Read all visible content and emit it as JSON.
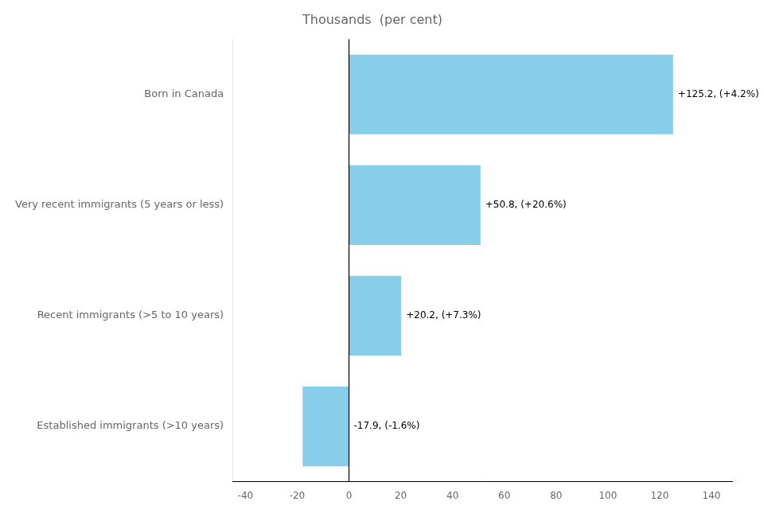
{
  "chart_data": {
    "type": "bar",
    "orientation": "horizontal",
    "title": "Thousands  (per cent)",
    "categories": [
      "Born in Canada",
      "Very recent immigrants (5 years or less)",
      "Recent immigrants (>5 to 10 years)",
      "Established immigrants (>10 years)"
    ],
    "values": [
      125.2,
      50.8,
      20.2,
      -17.9
    ],
    "value_labels": [
      "+125.2, (+4.2%)",
      "+50.8, (+20.6%)",
      "+20.2, (+7.3%)",
      "-17.9, (-1.6%)"
    ],
    "color": "#87CEEB",
    "xlim": [
      -45,
      148
    ],
    "xticks": [
      -40,
      -20,
      0,
      20,
      40,
      60,
      80,
      100,
      120,
      140
    ],
    "grid": false,
    "data_labels": true
  }
}
